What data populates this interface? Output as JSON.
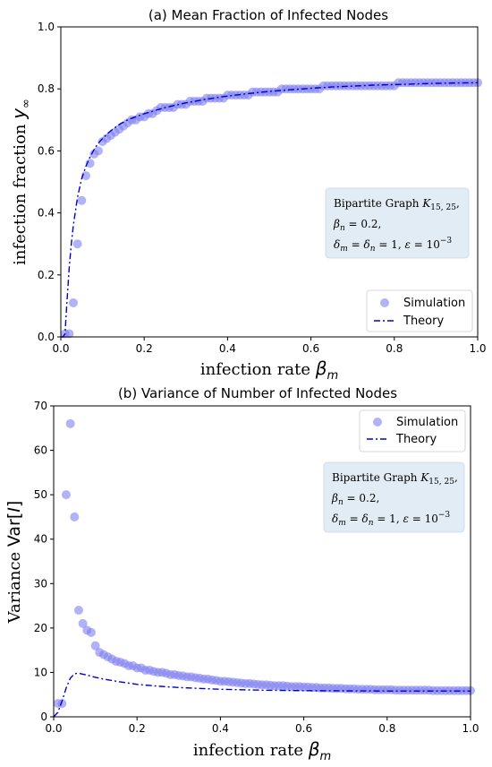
{
  "chart_data": [
    {
      "type": "scatter",
      "title": "(a) Mean Fraction of Infected Nodes",
      "xlabel": "infection rate β_m",
      "ylabel": "infection fraction y_∞",
      "xlim": [
        0,
        1
      ],
      "ylim": [
        0,
        1
      ],
      "xticks": [
        "0.0",
        "0.2",
        "0.4",
        "0.6",
        "0.8",
        "1.0"
      ],
      "yticks": [
        "0.0",
        "0.2",
        "0.4",
        "0.6",
        "0.8",
        "1.0"
      ],
      "legend": [
        "Simulation",
        "Theory"
      ],
      "legend_placement": "lower-right",
      "annotation": [
        "Bipartite Graph K_{15, 25},",
        "β_n = 0.2,",
        "δ_m = δ_n = 1, ε = 10^{−3}"
      ],
      "colors": {
        "simulation": "#7f7ff0",
        "theory": "#0000cd",
        "annotation_box": "#e2ecf4"
      },
      "series": [
        {
          "name": "Simulation",
          "x": [
            0.01,
            0.02,
            0.03,
            0.04,
            0.05,
            0.06,
            0.07,
            0.08,
            0.09,
            0.1,
            0.11,
            0.12,
            0.13,
            0.14,
            0.15,
            0.16,
            0.17,
            0.18,
            0.19,
            0.2,
            0.21,
            0.22,
            0.23,
            0.24,
            0.25,
            0.26,
            0.27,
            0.28,
            0.29,
            0.3,
            0.31,
            0.32,
            0.33,
            0.34,
            0.35,
            0.36,
            0.37,
            0.38,
            0.39,
            0.4,
            0.41,
            0.42,
            0.43,
            0.44,
            0.45,
            0.46,
            0.47,
            0.48,
            0.49,
            0.5,
            0.51,
            0.52,
            0.53,
            0.54,
            0.55,
            0.56,
            0.57,
            0.58,
            0.59,
            0.6,
            0.61,
            0.62,
            0.63,
            0.64,
            0.65,
            0.66,
            0.67,
            0.68,
            0.69,
            0.7,
            0.71,
            0.72,
            0.73,
            0.74,
            0.75,
            0.76,
            0.77,
            0.78,
            0.79,
            0.8,
            0.81,
            0.82,
            0.83,
            0.84,
            0.85,
            0.86,
            0.87,
            0.88,
            0.89,
            0.9,
            0.91,
            0.92,
            0.93,
            0.94,
            0.95,
            0.96,
            0.97,
            0.98,
            0.99,
            1.0
          ],
          "y": [
            0.01,
            0.01,
            0.11,
            0.3,
            0.44,
            0.52,
            0.56,
            0.59,
            0.6,
            0.63,
            0.64,
            0.65,
            0.66,
            0.67,
            0.68,
            0.69,
            0.7,
            0.7,
            0.71,
            0.71,
            0.72,
            0.72,
            0.73,
            0.74,
            0.74,
            0.74,
            0.74,
            0.75,
            0.75,
            0.75,
            0.76,
            0.76,
            0.76,
            0.76,
            0.77,
            0.77,
            0.77,
            0.77,
            0.77,
            0.78,
            0.78,
            0.78,
            0.78,
            0.78,
            0.78,
            0.79,
            0.79,
            0.79,
            0.79,
            0.79,
            0.79,
            0.79,
            0.8,
            0.8,
            0.8,
            0.8,
            0.8,
            0.8,
            0.8,
            0.8,
            0.8,
            0.8,
            0.81,
            0.81,
            0.81,
            0.81,
            0.81,
            0.81,
            0.81,
            0.81,
            0.81,
            0.81,
            0.81,
            0.81,
            0.81,
            0.81,
            0.81,
            0.81,
            0.81,
            0.81,
            0.82,
            0.82,
            0.82,
            0.82,
            0.82,
            0.82,
            0.82,
            0.82,
            0.82,
            0.82,
            0.82,
            0.82,
            0.82,
            0.82,
            0.82,
            0.82,
            0.82,
            0.82,
            0.82,
            0.82
          ]
        },
        {
          "name": "Theory",
          "x": [
            0.0,
            0.005,
            0.01,
            0.015,
            0.02,
            0.025,
            0.03,
            0.04,
            0.05,
            0.06,
            0.07,
            0.08,
            0.09,
            0.1,
            0.12,
            0.14,
            0.16,
            0.18,
            0.2,
            0.25,
            0.3,
            0.35,
            0.4,
            0.45,
            0.5,
            0.55,
            0.6,
            0.65,
            0.7,
            0.75,
            0.8,
            0.85,
            0.9,
            0.95,
            1.0
          ],
          "y": [
            0.0,
            0.0,
            0.01,
            0.12,
            0.22,
            0.3,
            0.36,
            0.45,
            0.51,
            0.55,
            0.58,
            0.605,
            0.625,
            0.64,
            0.665,
            0.685,
            0.7,
            0.71,
            0.72,
            0.74,
            0.755,
            0.767,
            0.777,
            0.785,
            0.792,
            0.797,
            0.802,
            0.806,
            0.809,
            0.812,
            0.814,
            0.816,
            0.818,
            0.819,
            0.82
          ]
        }
      ]
    },
    {
      "type": "scatter",
      "title": "(b) Variance of Number of Infected Nodes",
      "xlabel": "infection rate β_m",
      "ylabel": "Variance Var[I]",
      "xlim": [
        0,
        1
      ],
      "ylim": [
        0,
        70
      ],
      "xticks": [
        "0.0",
        "0.2",
        "0.4",
        "0.6",
        "0.8",
        "1.0"
      ],
      "yticks": [
        "0",
        "10",
        "20",
        "30",
        "40",
        "50",
        "60",
        "70"
      ],
      "legend": [
        "Simulation",
        "Theory"
      ],
      "legend_placement": "upper-right",
      "annotation": [
        "Bipartite Graph K_{15, 25},",
        "β_n = 0.2,",
        "δ_m = δ_n = 1, ε = 10^{−3}"
      ],
      "colors": {
        "simulation": "#7f7ff0",
        "theory": "#0000cd",
        "annotation_box": "#e2ecf4"
      },
      "series": [
        {
          "name": "Simulation",
          "x": [
            0.01,
            0.02,
            0.03,
            0.04,
            0.05,
            0.06,
            0.07,
            0.08,
            0.09,
            0.1,
            0.11,
            0.12,
            0.13,
            0.14,
            0.15,
            0.16,
            0.17,
            0.18,
            0.19,
            0.2,
            0.21,
            0.22,
            0.23,
            0.24,
            0.25,
            0.26,
            0.27,
            0.28,
            0.29,
            0.3,
            0.31,
            0.32,
            0.33,
            0.34,
            0.35,
            0.36,
            0.37,
            0.38,
            0.39,
            0.4,
            0.41,
            0.42,
            0.43,
            0.44,
            0.45,
            0.46,
            0.47,
            0.48,
            0.49,
            0.5,
            0.51,
            0.52,
            0.53,
            0.54,
            0.55,
            0.56,
            0.57,
            0.58,
            0.59,
            0.6,
            0.61,
            0.62,
            0.63,
            0.64,
            0.65,
            0.66,
            0.67,
            0.68,
            0.69,
            0.7,
            0.71,
            0.72,
            0.73,
            0.74,
            0.75,
            0.76,
            0.77,
            0.78,
            0.79,
            0.8,
            0.81,
            0.82,
            0.83,
            0.84,
            0.85,
            0.86,
            0.87,
            0.88,
            0.89,
            0.9,
            0.91,
            0.92,
            0.93,
            0.94,
            0.95,
            0.96,
            0.97,
            0.98,
            0.99,
            1.0
          ],
          "y": [
            3,
            3,
            50,
            66,
            45,
            24,
            21,
            19.5,
            19,
            16,
            14.5,
            14,
            13.5,
            13,
            12.5,
            12.3,
            12,
            11.5,
            11.5,
            11,
            11,
            10.5,
            10.5,
            10.2,
            10,
            10,
            9.8,
            9.5,
            9.5,
            9.3,
            9.2,
            9,
            9,
            8.8,
            8.7,
            8.5,
            8.5,
            8.3,
            8.2,
            8,
            8,
            7.9,
            7.8,
            7.7,
            7.6,
            7.5,
            7.5,
            7.4,
            7.3,
            7.2,
            7.2,
            7.1,
            7,
            7,
            7,
            6.9,
            6.8,
            6.8,
            6.8,
            6.7,
            6.7,
            6.6,
            6.6,
            6.5,
            6.5,
            6.5,
            6.4,
            6.4,
            6.4,
            6.3,
            6.3,
            6.3,
            6.2,
            6.2,
            6.2,
            6.2,
            6.1,
            6.1,
            6.1,
            6.1,
            6.1,
            6.0,
            6.0,
            6.0,
            6.0,
            6.0,
            6.0,
            6.0,
            6.0,
            6.0,
            5.9,
            5.9,
            5.9,
            5.9,
            5.9,
            5.9,
            5.9,
            5.9,
            5.9,
            5.9
          ]
        },
        {
          "name": "Theory",
          "x": [
            0.0,
            0.01,
            0.02,
            0.03,
            0.04,
            0.05,
            0.06,
            0.07,
            0.08,
            0.1,
            0.12,
            0.15,
            0.2,
            0.25,
            0.3,
            0.35,
            0.4,
            0.5,
            0.6,
            0.7,
            0.8,
            0.9,
            1.0
          ],
          "y": [
            0,
            1,
            3.5,
            6.5,
            8.7,
            9.7,
            9.8,
            9.6,
            9.4,
            8.9,
            8.5,
            8,
            7.3,
            6.9,
            6.6,
            6.4,
            6.2,
            6.0,
            5.9,
            5.85,
            5.8,
            5.8,
            5.8
          ]
        }
      ]
    }
  ]
}
